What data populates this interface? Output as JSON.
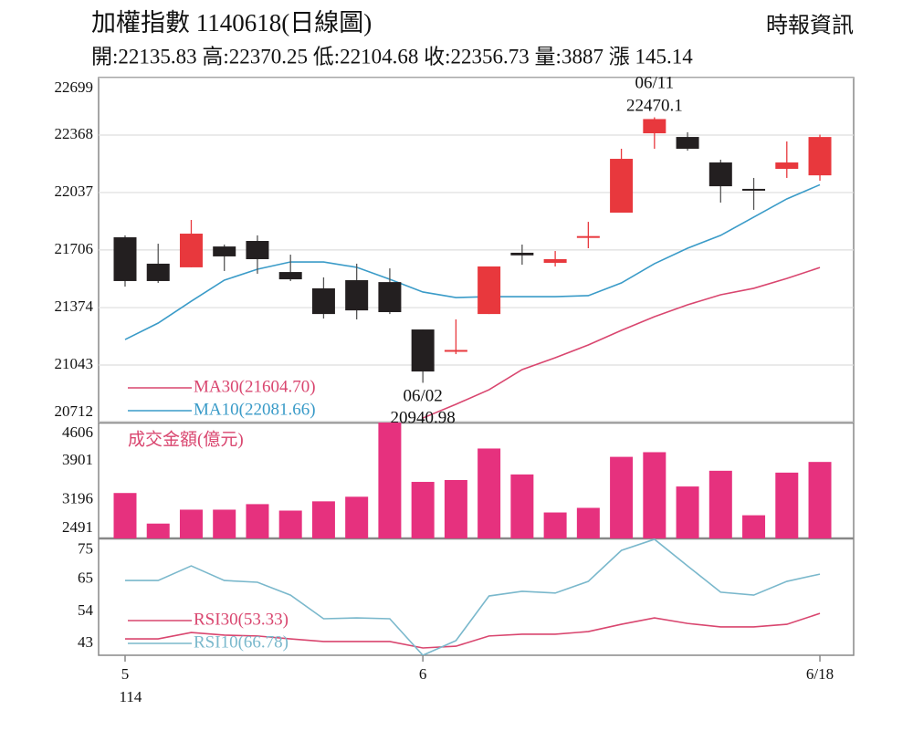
{
  "chart_data": [
    {
      "type": "candlestick",
      "title": "加權指數 1140618(日線圖)",
      "subtitle": "開:22135.83 高:22370.25 低:22104.68 收:22356.73 量:3887 漲 145.14",
      "source": "時報資訊",
      "open": [
        21779,
        21627,
        21606,
        21726,
        21758,
        21579,
        21485,
        21532,
        21521,
        21248,
        21125,
        21337,
        21690,
        21632,
        21780,
        21921,
        22378,
        22357,
        22210,
        22058,
        22173,
        22135.83
      ],
      "high": [
        21790,
        21742,
        21879,
        21737,
        21790,
        21679,
        21548,
        21627,
        21600,
        21248,
        21306,
        21611,
        21737,
        21700,
        21868,
        22289,
        22470.1,
        22384,
        22226,
        22121,
        22331,
        22370.25
      ],
      "low": [
        21495,
        21516,
        21606,
        21585,
        21569,
        21527,
        21311,
        21306,
        21337,
        20940.98,
        21106,
        21337,
        21621,
        21611,
        21716,
        21921,
        22289,
        22278,
        21979,
        21937,
        22121,
        22104.68
      ],
      "close": [
        21527,
        21527,
        21800,
        21669,
        21653,
        21537,
        21337,
        21358,
        21348,
        21006,
        21130,
        21611,
        21675,
        21653,
        21786,
        22231,
        22460,
        22289,
        22073,
        22052,
        22210,
        22356.73
      ],
      "point_dates": [
        null,
        null,
        null,
        null,
        null,
        null,
        null,
        null,
        null,
        "06/02",
        null,
        null,
        null,
        null,
        null,
        null,
        "06/11",
        null,
        null,
        null,
        null,
        null
      ],
      "high_labels": [
        null,
        null,
        null,
        null,
        null,
        null,
        null,
        null,
        null,
        null,
        null,
        null,
        null,
        null,
        null,
        null,
        "22470.1",
        null,
        null,
        null,
        null,
        null
      ],
      "low_labels": [
        null,
        null,
        null,
        null,
        null,
        null,
        null,
        null,
        null,
        "20940.98",
        null,
        null,
        null,
        null,
        null,
        null,
        null,
        null,
        null,
        null,
        null,
        null
      ],
      "up_color": "#e8383d",
      "down_color": "#231f20",
      "series": [
        {
          "name": "MA30(21604.70)",
          "color": "#d9466f",
          "values": [
            null,
            null,
            null,
            null,
            null,
            null,
            null,
            null,
            null,
            20738,
            20817,
            20901,
            21017,
            21085,
            21159,
            21243,
            21322,
            21390,
            21448,
            21485,
            21542,
            21604.7
          ]
        },
        {
          "name": "MA10(22081.66)",
          "color": "#3a9bc8",
          "values": [
            21190,
            21285,
            21411,
            21532,
            21595,
            21637,
            21637,
            21606,
            21537,
            21464,
            21432,
            21437,
            21437,
            21437,
            21443,
            21516,
            21627,
            21716,
            21790,
            21895,
            22000,
            22081.66
          ]
        }
      ],
      "ylim": [
        20712,
        22699
      ],
      "yticks": [
        20712,
        21043,
        21374,
        21706,
        22037,
        22368,
        22699
      ],
      "grid": true
    },
    {
      "type": "bar",
      "label": "成交金額(億元)",
      "values": [
        3320,
        2762,
        3016,
        3016,
        3117,
        2999,
        3168,
        3252,
        4620,
        3523,
        3557,
        4132,
        3659,
        2965,
        3049,
        3980,
        4065,
        3439,
        3726,
        2914,
        3692,
        3887
      ],
      "color": "#e6317e",
      "ylim": [
        2491,
        4606
      ],
      "yticks": [
        2491,
        3196,
        3901,
        4606
      ],
      "grid": false
    },
    {
      "type": "line",
      "categories": [
        "5",
        null,
        null,
        null,
        null,
        null,
        null,
        null,
        null,
        "6",
        null,
        null,
        null,
        null,
        null,
        null,
        null,
        null,
        null,
        null,
        null,
        "6/18"
      ],
      "x_note": "114",
      "series": [
        {
          "name": "RSI30(53.33)",
          "color": "#d9466f",
          "values": [
            44.6,
            44.6,
            46.8,
            45.9,
            45.6,
            44.6,
            43.7,
            43.7,
            43.7,
            41.5,
            42.1,
            45.6,
            46.2,
            46.2,
            47.1,
            49.6,
            51.8,
            49.9,
            48.7,
            48.7,
            49.6,
            53.33
          ]
        },
        {
          "name": "RSI10(66.78)",
          "color": "#7ab8cc",
          "values": [
            64.6,
            64.6,
            69.6,
            64.6,
            64.0,
            59.6,
            51.5,
            51.8,
            51.5,
            39,
            44,
            59.3,
            60.9,
            60.3,
            64.3,
            74.9,
            78.7,
            69.6,
            60.6,
            59.6,
            64.3,
            66.78
          ]
        }
      ],
      "ylim": [
        39,
        79
      ],
      "yticks": [
        43,
        54,
        65,
        75
      ],
      "grid": false
    }
  ]
}
